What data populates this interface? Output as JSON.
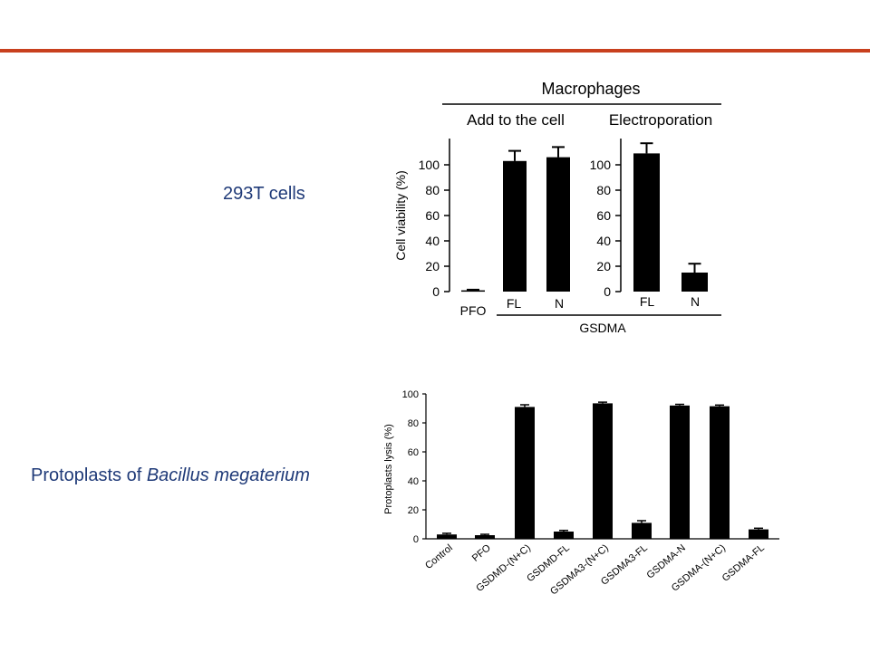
{
  "slide": {
    "accent_color": "#c8401e",
    "label_color": "#1f3a78"
  },
  "labels": {
    "row1": "293T cells",
    "row2_prefix": "Protoplasts of ",
    "row2_italic": "Bacillus megaterium"
  },
  "chart_data": [
    {
      "type": "bar",
      "title": "Macrophages",
      "ylabel": "Cell viability (%)",
      "ylim": [
        0,
        120
      ],
      "yticks": [
        0,
        20,
        40,
        60,
        80,
        100
      ],
      "panels": [
        {
          "name": "Add to the cell",
          "categories": [
            "PFO",
            "FL",
            "N"
          ],
          "values": [
            1,
            103,
            106
          ],
          "errors": [
            0.5,
            8,
            8
          ]
        },
        {
          "name": "Electroporation",
          "categories": [
            "FL",
            "N"
          ],
          "values": [
            109,
            15
          ],
          "errors": [
            8,
            7
          ]
        }
      ],
      "group_label": "GSDMA",
      "bar_color": "#000000"
    },
    {
      "type": "bar",
      "ylabel": "Protoplasts lysis (%)",
      "ylim": [
        0,
        100
      ],
      "yticks": [
        0,
        20,
        40,
        60,
        80,
        100
      ],
      "categories": [
        "Control",
        "PFO",
        "GSDMD-(N+C)",
        "GSDMD-FL",
        "GSDMA3-(N+C)",
        "GSDMA3-FL",
        "GSDMA-N",
        "GSDMA-(N+C)",
        "GSDMA-FL"
      ],
      "values": [
        3,
        2.5,
        91,
        5,
        93.5,
        11,
        92,
        91.5,
        6.5
      ],
      "errors": [
        0.8,
        0.6,
        1.5,
        0.8,
        0.8,
        1.5,
        0.8,
        0.8,
        0.8
      ],
      "bar_color": "#000000"
    }
  ]
}
